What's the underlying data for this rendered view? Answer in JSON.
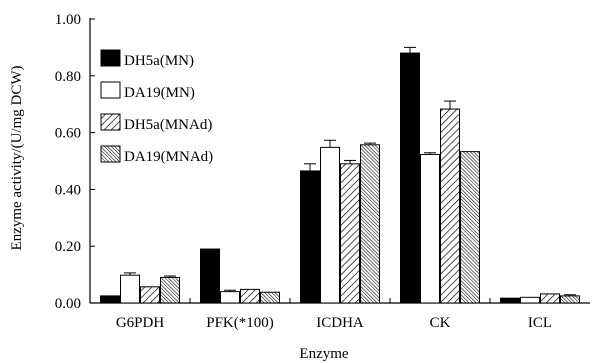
{
  "chart_data": {
    "type": "bar",
    "title": "",
    "xlabel": "Enzyme",
    "ylabel": "Enzyme activity/(U/mg DCW)",
    "ylim": [
      0,
      1.0
    ],
    "yticks": [
      "0.00",
      "0.20",
      "0.40",
      "0.60",
      "0.80",
      "1.00"
    ],
    "categories": [
      "G6PDH",
      "PFK(*100)",
      "ICDHA",
      "CK",
      "ICL"
    ],
    "legend_position": "top-left",
    "grid": false,
    "series": [
      {
        "name": "DH5a(MN)",
        "fill": "solid-black",
        "values": [
          0.025,
          0.19,
          0.465,
          0.88,
          0.017
        ],
        "errors": [
          0.0,
          0.0,
          0.025,
          0.02,
          0.0
        ]
      },
      {
        "name": "DA19(MN)",
        "fill": "white",
        "values": [
          0.098,
          0.04,
          0.548,
          0.523,
          0.02
        ],
        "errors": [
          0.008,
          0.005,
          0.025,
          0.006,
          0.0
        ]
      },
      {
        "name": "DH5a(MNAd)",
        "fill": "hatch-diagonal",
        "values": [
          0.057,
          0.048,
          0.49,
          0.683,
          0.032
        ],
        "errors": [
          0.0,
          0.0,
          0.012,
          0.028,
          0.0
        ]
      },
      {
        "name": "DA19(MNAd)",
        "fill": "hatch-cross",
        "values": [
          0.09,
          0.038,
          0.557,
          0.533,
          0.025
        ],
        "errors": [
          0.005,
          0.0,
          0.006,
          0.0,
          0.004
        ]
      }
    ]
  }
}
